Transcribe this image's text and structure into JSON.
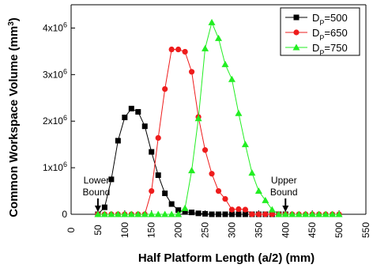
{
  "chart_data": {
    "type": "line",
    "xlabel": "Half Platform Length (a/2) (mm)",
    "ylabel": "Common Workspace Volume (mm",
    "ylabel_sup": "3",
    "ylabel_close": ")",
    "xlim": [
      0,
      550
    ],
    "ylim": [
      0,
      4500000
    ],
    "xticks": [
      0,
      50,
      100,
      150,
      200,
      250,
      300,
      350,
      400,
      450,
      500,
      550
    ],
    "yticks": [
      {
        "value": 0,
        "base": "0",
        "exp": ""
      },
      {
        "value": 1000000,
        "base": "1x10",
        "exp": "6"
      },
      {
        "value": 2000000,
        "base": "2x10",
        "exp": "6"
      },
      {
        "value": 3000000,
        "base": "3x10",
        "exp": "6"
      },
      {
        "value": 4000000,
        "base": "4x10",
        "exp": "6"
      }
    ],
    "grid": false,
    "legend_position": "top-right",
    "series": [
      {
        "name": "D",
        "name_sub": "P",
        "name_value": "=500",
        "color": "#000000",
        "marker": "square",
        "x": [
          50,
          62.5,
          75,
          87.5,
          100,
          112.5,
          125,
          137.5,
          150,
          162.5,
          175,
          187.5,
          200,
          212.5,
          225,
          237.5,
          250,
          262.5,
          275,
          287.5,
          300,
          312.5,
          325,
          337.5,
          350,
          362.5,
          375,
          387.5,
          400
        ],
        "y": [
          0,
          150000,
          750000,
          1580000,
          2080000,
          2270000,
          2200000,
          1890000,
          1340000,
          840000,
          450000,
          220000,
          90000,
          50000,
          40000,
          20000,
          10000,
          0,
          0,
          0,
          0,
          0,
          0,
          0,
          0,
          0,
          0,
          0,
          0
        ]
      },
      {
        "name": "D",
        "name_sub": "P",
        "name_value": "=650",
        "color": "#ee1c1c",
        "marker": "circle",
        "x": [
          50,
          62.5,
          75,
          87.5,
          100,
          112.5,
          125,
          137.5,
          150,
          162.5,
          175,
          187.5,
          200,
          212.5,
          225,
          237.5,
          250,
          262.5,
          275,
          287.5,
          300,
          312.5,
          325,
          337.5,
          350,
          362.5,
          375,
          387.5,
          400,
          412.5,
          425,
          437.5,
          450,
          462.5,
          475,
          487.5,
          500
        ],
        "y": [
          0,
          0,
          0,
          0,
          0,
          0,
          0,
          0,
          500000,
          1640000,
          2690000,
          3540000,
          3540000,
          3490000,
          3060000,
          2090000,
          1380000,
          870000,
          500000,
          330000,
          100000,
          110000,
          100000,
          0,
          0,
          0,
          0,
          0,
          0,
          0,
          0,
          0,
          0,
          0,
          0,
          0,
          0
        ]
      },
      {
        "name": "D",
        "name_sub": "P",
        "name_value": "=750",
        "color": "#22ee22",
        "marker": "triangle",
        "x": [
          50,
          62.5,
          75,
          87.5,
          100,
          112.5,
          125,
          137.5,
          150,
          162.5,
          175,
          187.5,
          200,
          212.5,
          225,
          237.5,
          250,
          262.5,
          275,
          287.5,
          300,
          312.5,
          325,
          337.5,
          350,
          362.5,
          375,
          387.5,
          400,
          412.5,
          425,
          437.5,
          450,
          462.5,
          475,
          487.5,
          500
        ],
        "y": [
          0,
          0,
          0,
          0,
          0,
          0,
          0,
          0,
          0,
          0,
          0,
          0,
          0,
          130000,
          940000,
          2060000,
          3560000,
          4120000,
          3780000,
          3220000,
          2900000,
          2170000,
          1500000,
          890000,
          500000,
          300000,
          100000,
          0,
          0,
          0,
          0,
          0,
          0,
          0,
          0,
          0,
          0
        ]
      }
    ],
    "annotations": [
      {
        "line1": "Lower",
        "line2": "Bound",
        "x": 50
      },
      {
        "line1": "Upper",
        "line2": "Bound",
        "x": 400
      }
    ]
  }
}
